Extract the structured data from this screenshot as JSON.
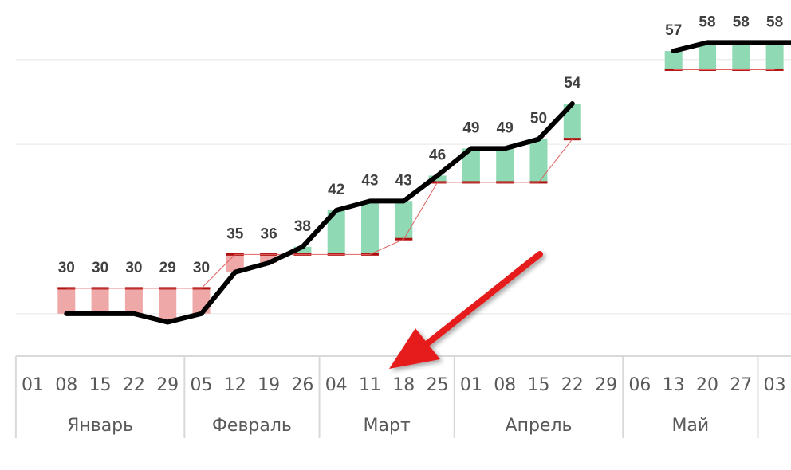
{
  "chart_data": {
    "type": "line",
    "title": "",
    "xlabel": "",
    "ylabel": "",
    "ylim": [
      20,
      60
    ],
    "gridlines": [
      25,
      35,
      45,
      55
    ],
    "grid": true,
    "x": [
      "01",
      "08",
      "15",
      "22",
      "29",
      "05",
      "12",
      "19",
      "26",
      "04",
      "11",
      "18",
      "25",
      "01",
      "08",
      "15",
      "22",
      "29",
      "06",
      "13",
      "20",
      "27",
      "03"
    ],
    "months": [
      {
        "name": "Январь",
        "start": 0,
        "count": 5
      },
      {
        "name": "Февраль",
        "start": 5,
        "count": 4
      },
      {
        "name": "Март",
        "start": 9,
        "count": 4
      },
      {
        "name": "Апрель",
        "start": 13,
        "count": 5
      },
      {
        "name": "Май",
        "start": 18,
        "count": 4
      }
    ],
    "series": [
      {
        "role": "line",
        "values": [
          null,
          25,
          25,
          25,
          24,
          25,
          29.9,
          31,
          32.9,
          37.2,
          38.3,
          38.3,
          41.3,
          44.5,
          44.5,
          45.6,
          49.8,
          null,
          null,
          56,
          57,
          57,
          57
        ]
      },
      {
        "role": "labels",
        "values": [
          null,
          30,
          30,
          30,
          29,
          30,
          35,
          36,
          38,
          42,
          43,
          43,
          46,
          49,
          49,
          50,
          54,
          null,
          null,
          57,
          58,
          58,
          58
        ]
      },
      {
        "role": "reference",
        "values": [
          null,
          28,
          28,
          28,
          28,
          28,
          32,
          32,
          32,
          32,
          32,
          33.8,
          40.5,
          40.5,
          40.5,
          40.5,
          45.6,
          null,
          null,
          53.8,
          53.8,
          53.8,
          53.8
        ]
      }
    ],
    "colors": {
      "up_bar": "#8fdab4",
      "down_bar": "#eea8a8",
      "marker": "#b01010",
      "line": "#000000",
      "reference_line": "#e06060",
      "arrow": "#e61e1e"
    }
  }
}
